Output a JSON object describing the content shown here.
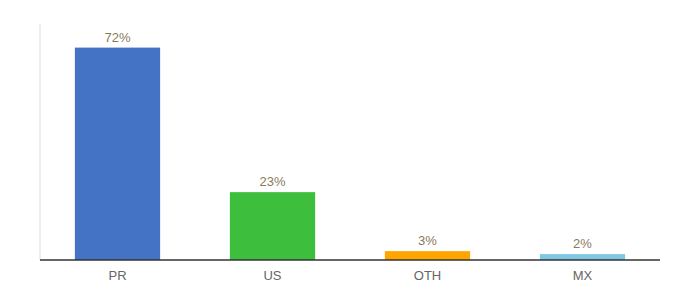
{
  "chart_data": {
    "type": "bar",
    "categories": [
      "PR",
      "US",
      "OTH",
      "MX"
    ],
    "values": [
      72,
      23,
      3,
      2
    ],
    "value_labels": [
      "72%",
      "23%",
      "3%",
      "2%"
    ],
    "colors": [
      "#4472C4",
      "#3DBF3D",
      "#FFA500",
      "#7EC8E3"
    ],
    "ylim": [
      0,
      80
    ],
    "data_labels": true,
    "tick_labels": "x",
    "grid": false
  }
}
